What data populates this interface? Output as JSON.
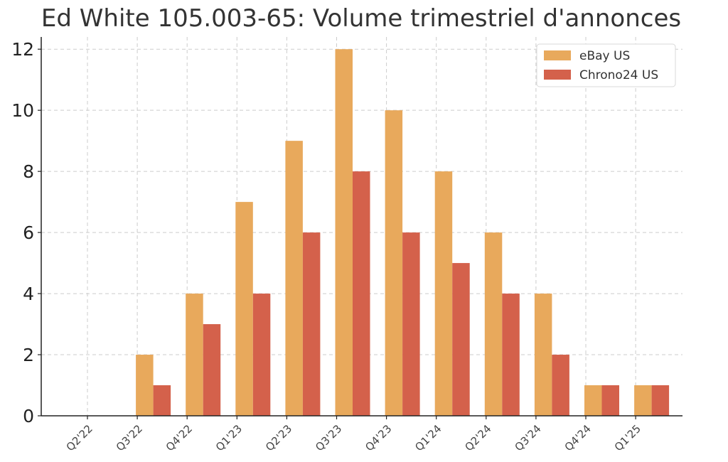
{
  "chart_data": {
    "type": "bar",
    "title": "Ed White 105.003-65: Volume trimestriel d'annonces",
    "xlabel": "",
    "ylabel": "",
    "categories": [
      "Q2'22",
      "Q3'22",
      "Q4'22",
      "Q1'23",
      "Q2'23",
      "Q3'23",
      "Q4'23",
      "Q1'24",
      "Q2'24",
      "Q3'24",
      "Q4'24",
      "Q1'25"
    ],
    "series": [
      {
        "name": "eBay US",
        "color": "#E8A95C",
        "values": [
          0,
          2,
          4,
          7,
          9,
          12,
          10,
          8,
          6,
          4,
          1,
          1
        ]
      },
      {
        "name": "Chrono24 US",
        "color": "#D4614B",
        "values": [
          0,
          1,
          3,
          4,
          6,
          8,
          6,
          5,
          4,
          2,
          1,
          1
        ]
      }
    ],
    "ylim": [
      0,
      12.4
    ],
    "yticks": [
      0,
      2,
      4,
      6,
      8,
      10,
      12
    ],
    "grid": true,
    "legend_position": "top-right"
  }
}
